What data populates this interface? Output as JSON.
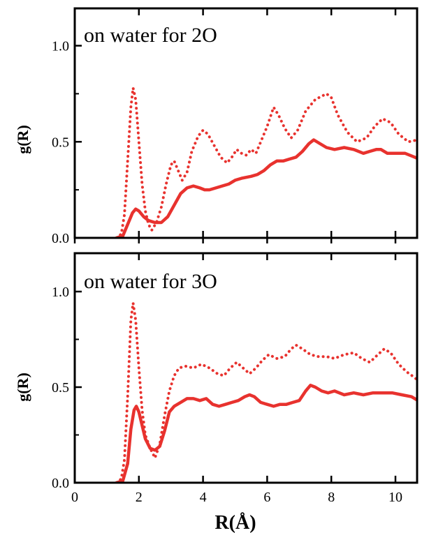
{
  "chart_data": [
    {
      "type": "line",
      "title": "on water for 2O",
      "xlabel": "R(Å)",
      "ylabel": "g(R)",
      "xlim": [
        0,
        11
      ],
      "ylim": [
        0,
        1.2
      ],
      "x_ticks": [
        "0",
        "2",
        "4",
        "6",
        "8",
        "10"
      ],
      "y_ticks": [
        "0.0",
        "0.5",
        "1.0"
      ],
      "color": "#e8322e",
      "series": [
        {
          "style": "dotted",
          "points": [
            [
              1.3,
              0.0
            ],
            [
              1.45,
              0.02
            ],
            [
              1.55,
              0.12
            ],
            [
              1.65,
              0.4
            ],
            [
              1.75,
              0.68
            ],
            [
              1.82,
              0.78
            ],
            [
              1.9,
              0.72
            ],
            [
              2.0,
              0.5
            ],
            [
              2.1,
              0.28
            ],
            [
              2.2,
              0.14
            ],
            [
              2.3,
              0.07
            ],
            [
              2.4,
              0.04
            ],
            [
              2.55,
              0.08
            ],
            [
              2.7,
              0.16
            ],
            [
              2.85,
              0.28
            ],
            [
              3.0,
              0.38
            ],
            [
              3.1,
              0.4
            ],
            [
              3.2,
              0.36
            ],
            [
              3.35,
              0.3
            ],
            [
              3.5,
              0.34
            ],
            [
              3.65,
              0.45
            ],
            [
              3.85,
              0.53
            ],
            [
              4.0,
              0.56
            ],
            [
              4.15,
              0.54
            ],
            [
              4.35,
              0.48
            ],
            [
              4.55,
              0.42
            ],
            [
              4.75,
              0.39
            ],
            [
              4.9,
              0.42
            ],
            [
              5.05,
              0.46
            ],
            [
              5.2,
              0.44
            ],
            [
              5.35,
              0.43
            ],
            [
              5.5,
              0.46
            ],
            [
              5.65,
              0.44
            ],
            [
              5.8,
              0.5
            ],
            [
              6.0,
              0.58
            ],
            [
              6.2,
              0.68
            ],
            [
              6.35,
              0.64
            ],
            [
              6.55,
              0.57
            ],
            [
              6.75,
              0.52
            ],
            [
              6.95,
              0.56
            ],
            [
              7.2,
              0.66
            ],
            [
              7.5,
              0.72
            ],
            [
              7.85,
              0.75
            ],
            [
              8.0,
              0.73
            ],
            [
              8.2,
              0.64
            ],
            [
              8.5,
              0.55
            ],
            [
              8.8,
              0.5
            ],
            [
              9.1,
              0.52
            ],
            [
              9.35,
              0.58
            ],
            [
              9.6,
              0.62
            ],
            [
              9.85,
              0.6
            ],
            [
              10.1,
              0.54
            ],
            [
              10.4,
              0.5
            ],
            [
              10.7,
              0.51
            ],
            [
              11.0,
              0.49
            ]
          ]
        },
        {
          "style": "solid",
          "points": [
            [
              1.3,
              0.0
            ],
            [
              1.5,
              0.01
            ],
            [
              1.65,
              0.07
            ],
            [
              1.8,
              0.13
            ],
            [
              1.9,
              0.15
            ],
            [
              2.0,
              0.14
            ],
            [
              2.15,
              0.11
            ],
            [
              2.3,
              0.09
            ],
            [
              2.5,
              0.08
            ],
            [
              2.7,
              0.08
            ],
            [
              2.9,
              0.11
            ],
            [
              3.1,
              0.17
            ],
            [
              3.3,
              0.23
            ],
            [
              3.5,
              0.26
            ],
            [
              3.7,
              0.27
            ],
            [
              3.9,
              0.26
            ],
            [
              4.05,
              0.25
            ],
            [
              4.2,
              0.25
            ],
            [
              4.4,
              0.26
            ],
            [
              4.6,
              0.27
            ],
            [
              4.8,
              0.28
            ],
            [
              5.0,
              0.3
            ],
            [
              5.2,
              0.31
            ],
            [
              5.5,
              0.32
            ],
            [
              5.7,
              0.33
            ],
            [
              5.9,
              0.35
            ],
            [
              6.1,
              0.38
            ],
            [
              6.3,
              0.4
            ],
            [
              6.5,
              0.4
            ],
            [
              6.7,
              0.41
            ],
            [
              6.9,
              0.42
            ],
            [
              7.1,
              0.45
            ],
            [
              7.3,
              0.49
            ],
            [
              7.45,
              0.51
            ],
            [
              7.65,
              0.49
            ],
            [
              7.85,
              0.47
            ],
            [
              8.1,
              0.46
            ],
            [
              8.4,
              0.47
            ],
            [
              8.7,
              0.46
            ],
            [
              9.0,
              0.44
            ],
            [
              9.2,
              0.45
            ],
            [
              9.4,
              0.46
            ],
            [
              9.55,
              0.46
            ],
            [
              9.75,
              0.44
            ],
            [
              10.0,
              0.44
            ],
            [
              10.3,
              0.44
            ],
            [
              10.6,
              0.42
            ],
            [
              11.0,
              0.39
            ]
          ]
        }
      ]
    },
    {
      "type": "line",
      "title": "on water for 3O",
      "xlabel": "R(Å)",
      "ylabel": "g(R)",
      "xlim": [
        0,
        11
      ],
      "ylim": [
        0,
        1.2
      ],
      "x_ticks": [
        "0",
        "2",
        "4",
        "6",
        "8",
        "10"
      ],
      "y_ticks": [
        "0.0",
        "0.5",
        "1.0"
      ],
      "color": "#e8322e",
      "series": [
        {
          "style": "dotted",
          "points": [
            [
              1.3,
              0.0
            ],
            [
              1.45,
              0.02
            ],
            [
              1.55,
              0.12
            ],
            [
              1.65,
              0.45
            ],
            [
              1.75,
              0.85
            ],
            [
              1.82,
              0.94
            ],
            [
              1.9,
              0.85
            ],
            [
              2.0,
              0.6
            ],
            [
              2.1,
              0.38
            ],
            [
              2.2,
              0.25
            ],
            [
              2.35,
              0.18
            ],
            [
              2.5,
              0.13
            ],
            [
              2.65,
              0.2
            ],
            [
              2.8,
              0.35
            ],
            [
              2.95,
              0.48
            ],
            [
              3.1,
              0.56
            ],
            [
              3.25,
              0.6
            ],
            [
              3.45,
              0.61
            ],
            [
              3.7,
              0.6
            ],
            [
              3.95,
              0.62
            ],
            [
              4.2,
              0.6
            ],
            [
              4.45,
              0.57
            ],
            [
              4.65,
              0.56
            ],
            [
              4.85,
              0.6
            ],
            [
              5.05,
              0.63
            ],
            [
              5.25,
              0.6
            ],
            [
              5.45,
              0.57
            ],
            [
              5.65,
              0.6
            ],
            [
              5.85,
              0.64
            ],
            [
              6.05,
              0.67
            ],
            [
              6.3,
              0.65
            ],
            [
              6.55,
              0.66
            ],
            [
              6.75,
              0.7
            ],
            [
              6.9,
              0.72
            ],
            [
              7.1,
              0.7
            ],
            [
              7.35,
              0.67
            ],
            [
              7.6,
              0.66
            ],
            [
              7.85,
              0.66
            ],
            [
              8.1,
              0.65
            ],
            [
              8.4,
              0.67
            ],
            [
              8.7,
              0.68
            ],
            [
              8.95,
              0.65
            ],
            [
              9.2,
              0.63
            ],
            [
              9.45,
              0.67
            ],
            [
              9.65,
              0.7
            ],
            [
              9.85,
              0.68
            ],
            [
              10.1,
              0.62
            ],
            [
              10.35,
              0.58
            ],
            [
              10.6,
              0.55
            ],
            [
              10.8,
              0.52
            ],
            [
              11.0,
              0.48
            ]
          ]
        },
        {
          "style": "solid",
          "points": [
            [
              1.3,
              0.0
            ],
            [
              1.5,
              0.01
            ],
            [
              1.65,
              0.1
            ],
            [
              1.75,
              0.28
            ],
            [
              1.85,
              0.38
            ],
            [
              1.92,
              0.4
            ],
            [
              2.0,
              0.37
            ],
            [
              2.1,
              0.3
            ],
            [
              2.2,
              0.23
            ],
            [
              2.35,
              0.18
            ],
            [
              2.5,
              0.17
            ],
            [
              2.65,
              0.19
            ],
            [
              2.8,
              0.27
            ],
            [
              2.95,
              0.37
            ],
            [
              3.1,
              0.4
            ],
            [
              3.3,
              0.42
            ],
            [
              3.5,
              0.44
            ],
            [
              3.7,
              0.44
            ],
            [
              3.9,
              0.43
            ],
            [
              4.1,
              0.44
            ],
            [
              4.3,
              0.41
            ],
            [
              4.5,
              0.4
            ],
            [
              4.7,
              0.41
            ],
            [
              4.9,
              0.42
            ],
            [
              5.1,
              0.43
            ],
            [
              5.3,
              0.45
            ],
            [
              5.45,
              0.46
            ],
            [
              5.6,
              0.45
            ],
            [
              5.8,
              0.42
            ],
            [
              6.0,
              0.41
            ],
            [
              6.2,
              0.4
            ],
            [
              6.4,
              0.41
            ],
            [
              6.6,
              0.41
            ],
            [
              6.8,
              0.42
            ],
            [
              7.0,
              0.43
            ],
            [
              7.2,
              0.48
            ],
            [
              7.35,
              0.51
            ],
            [
              7.5,
              0.5
            ],
            [
              7.7,
              0.48
            ],
            [
              7.9,
              0.47
            ],
            [
              8.1,
              0.48
            ],
            [
              8.4,
              0.46
            ],
            [
              8.7,
              0.47
            ],
            [
              9.0,
              0.46
            ],
            [
              9.3,
              0.47
            ],
            [
              9.6,
              0.47
            ],
            [
              9.9,
              0.47
            ],
            [
              10.2,
              0.46
            ],
            [
              10.5,
              0.45
            ],
            [
              10.8,
              0.42
            ],
            [
              11.0,
              0.38
            ]
          ]
        }
      ]
    }
  ]
}
